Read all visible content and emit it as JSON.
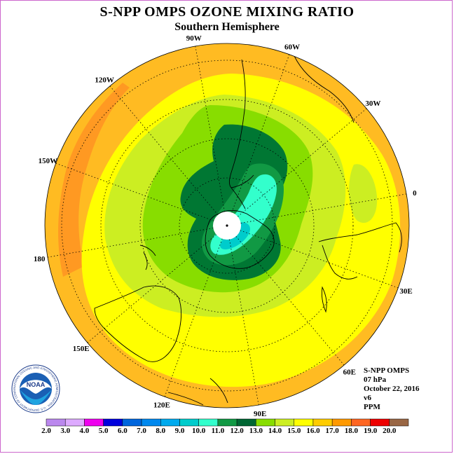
{
  "header": {
    "title": "S-NPP OMPS OZONE MIXING RATIO",
    "subtitle": "Southern Hemisphere"
  },
  "longitude_labels": [
    "90W",
    "60W",
    "30W",
    "0",
    "30E",
    "60E",
    "90E",
    "120E",
    "150E",
    "180",
    "150W",
    "120W"
  ],
  "info": {
    "instrument": "S-NPP OMPS",
    "level": "07 hPa",
    "date": "October 22, 2016",
    "version": "v6",
    "units": "PPM"
  },
  "logo": {
    "text": "NOAA",
    "ring_text": "NATIONAL OCEANIC AND ATMOSPHERIC ADMINISTRATION · U.S. DEPARTMENT OF COMMERCE"
  },
  "colorbar": {
    "ticks": [
      "2.0",
      "3.0",
      "4.0",
      "5.0",
      "6.0",
      "7.0",
      "8.0",
      "9.0",
      "10.0",
      "11.0",
      "12.0",
      "13.0",
      "14.0",
      "15.0",
      "16.0",
      "17.0",
      "18.0",
      "19.0",
      "20.0"
    ],
    "colors": [
      "#bb88ee",
      "#ddaaff",
      "#ee00ee",
      "#0000dd",
      "#0066dd",
      "#0088ee",
      "#00aaee",
      "#00cccc",
      "#33ffcc",
      "#119944",
      "#006633",
      "#88dd00",
      "#ccee22",
      "#ffff00",
      "#ffcc00",
      "#ff9900",
      "#ff6622",
      "#ee0000",
      "#996644"
    ]
  },
  "field_colors": {
    "c16": "#ffbb22",
    "c17": "#ff9922",
    "c15": "#ffff00",
    "c14": "#ccee22",
    "c13": "#88dd00",
    "c12": "#007733",
    "c11": "#119944",
    "c10": "#33ffcc",
    "c9": "#00cccc"
  }
}
